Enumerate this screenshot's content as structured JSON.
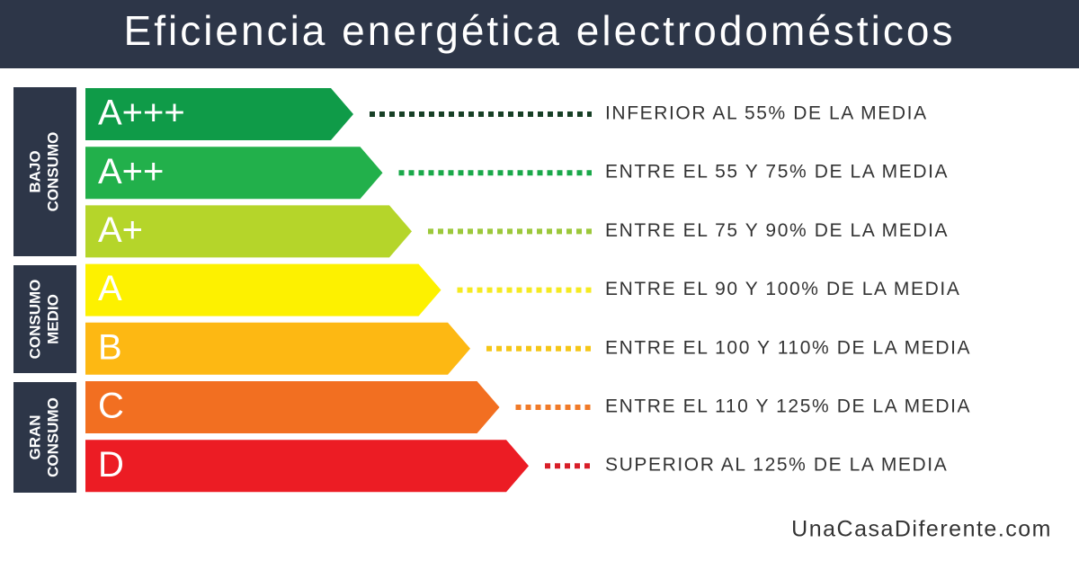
{
  "header": {
    "title": "Eficiencia energética electrodomésticos"
  },
  "groups": [
    {
      "lines": [
        "BAJO",
        "CONSUMO"
      ]
    },
    {
      "lines": [
        "CONSUMO",
        "MEDIO"
      ]
    },
    {
      "lines": [
        "GRAN",
        "CONSUMO"
      ]
    }
  ],
  "rows": [
    {
      "label": "A+++",
      "description": "INFERIOR AL 55% DE LA MEDIA",
      "color": "#0f9b48",
      "dot_color": "#173f26"
    },
    {
      "label": "A++",
      "description": "ENTRE EL 55 Y 75% DE LA MEDIA",
      "color": "#22b04b",
      "dot_color": "#1aa84a"
    },
    {
      "label": "A+",
      "description": "ENTRE EL 75 Y 90% DE LA MEDIA",
      "color": "#b5d52a",
      "dot_color": "#9cc83a"
    },
    {
      "label": "A",
      "description": "ENTRE EL 90 Y 100% DE LA MEDIA",
      "color": "#fdf100",
      "dot_color": "#f5ea20"
    },
    {
      "label": "B",
      "description": "ENTRE EL 100 Y 110% DE LA MEDIA",
      "color": "#fdb813",
      "dot_color": "#f5c618"
    },
    {
      "label": "C",
      "description": "ENTRE EL 110 Y 125% DE LA MEDIA",
      "color": "#f26f21",
      "dot_color": "#f07a28"
    },
    {
      "label": "D",
      "description": "SUPERIOR AL 125% DE LA MEDIA",
      "color": "#ec1c24",
      "dot_color": "#d81e28"
    }
  ],
  "footer": {
    "site": "UnaCasaDiferente.com"
  }
}
